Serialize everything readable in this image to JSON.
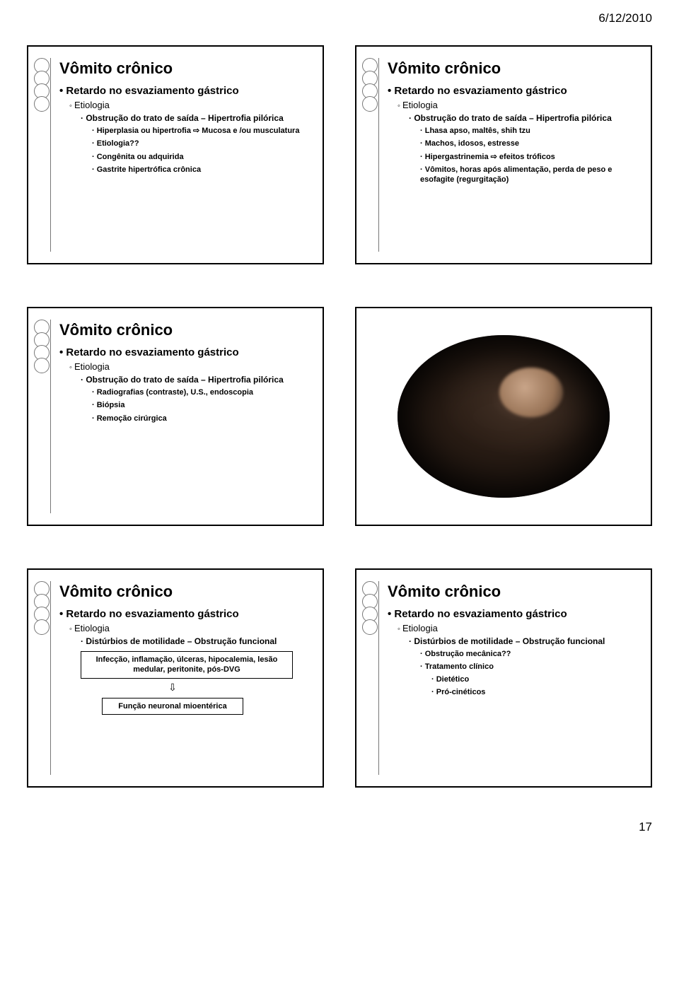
{
  "date": "6/12/2010",
  "page_number": "17",
  "slides": {
    "s1": {
      "title": "Vômito crônico",
      "l1": "Retardo no esvaziamento gástrico",
      "l2": "Etiologia",
      "l3_1": "Obstrução do trato de saída – Hipertrofia pilórica",
      "l4_1": "Hiperplasia ou hipertrofia ⇨ Mucosa e /ou musculatura",
      "l4_2": "Etiologia??",
      "l4_3": "Congênita ou adquirida",
      "l4_4": "Gastrite hipertrófica crônica"
    },
    "s2": {
      "title": "Vômito crônico",
      "l1": "Retardo no esvaziamento gástrico",
      "l2": "Etiologia",
      "l3_1": "Obstrução do trato de saída – Hipertrofia pilórica",
      "l4_1": "Lhasa apso, maltês, shih tzu",
      "l4_2": "Machos, idosos, estresse",
      "l4_3": "Hipergastrinemia ⇨ efeitos tróficos",
      "l4_4": "Vômitos, horas após alimentação, perda de peso e esofagite (regurgitação)"
    },
    "s3": {
      "title": "Vômito crônico",
      "l1": "Retardo no esvaziamento gástrico",
      "l2": "Etiologia",
      "l3_1": "Obstrução do trato de saída – Hipertrofia pilórica",
      "l4_1": "Radiografias (contraste), U.S., endoscopia",
      "l4_2": "Biópsia",
      "l4_3": "Remoção cirúrgica"
    },
    "s5": {
      "title": "Vômito crônico",
      "l1": "Retardo no esvaziamento gástrico",
      "l2": "Etiologia",
      "l3_1": "Distúrbios de motilidade – Obstrução funcional",
      "box1": "Infecção, inflamação, úlceras, hipocalemia, lesão medular, peritonite, pós-DVG",
      "box2": "Função neuronal mioentérica"
    },
    "s6": {
      "title": "Vômito crônico",
      "l1": "Retardo no esvaziamento gástrico",
      "l2": "Etiologia",
      "l3_1": "Distúrbios de motilidade – Obstrução funcional",
      "l4_1": "Obstrução mecânica??",
      "l4_2": "Tratamento clínico",
      "l5_1": "Dietético",
      "l5_2": "Pró-cinéticos"
    }
  }
}
